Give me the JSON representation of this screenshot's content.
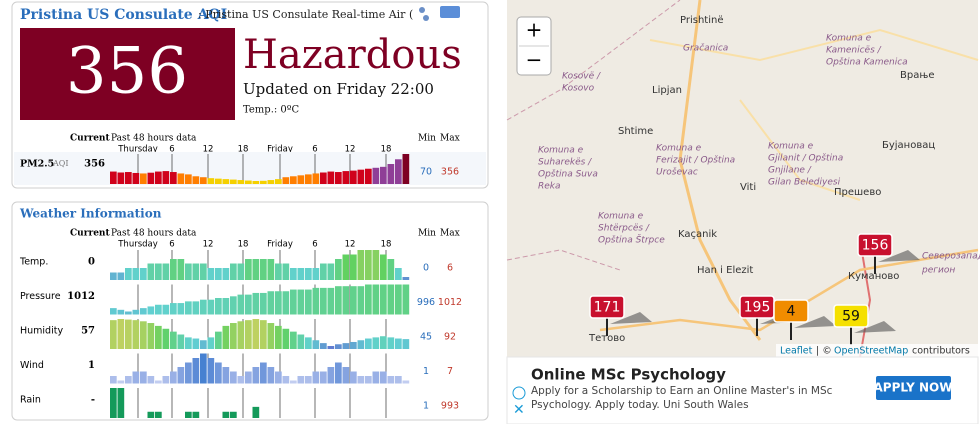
{
  "header": {
    "title": "Pristina US Consulate AQI",
    "subtitle": ": Pristina US Consulate Real-time Air ("
  },
  "aqi": {
    "value": 356,
    "level": "Hazardous",
    "updated": "Updated on Friday 22:00",
    "temp": "Temp.: 0ºC"
  },
  "columns": {
    "current": "Current",
    "past": "Past 48 hours data",
    "min": "Min",
    "max": "Max",
    "times": [
      "Thursday",
      "6",
      "12",
      "18",
      "Friday",
      "6",
      "12",
      "18"
    ]
  },
  "pm25": {
    "label": "PM2.5",
    "unit": "AQI",
    "current": 356,
    "min": 70,
    "max": 356,
    "values": [
      170,
      160,
      165,
      155,
      150,
      158,
      170,
      175,
      165,
      150,
      140,
      120,
      110,
      100,
      95,
      90,
      85,
      80,
      75,
      70,
      72,
      80,
      90,
      110,
      120,
      130,
      140,
      150,
      160,
      170,
      165,
      175,
      180,
      190,
      200,
      210,
      220,
      250,
      300,
      356
    ]
  },
  "weather": {
    "title": "Weather Information",
    "rows": [
      {
        "label": "Temp.",
        "current": 0,
        "min": 0,
        "max": 6,
        "values": [
          1,
          1,
          2,
          2,
          2,
          3,
          3,
          3,
          4,
          4,
          3,
          3,
          3,
          2,
          2,
          2,
          3,
          3,
          4,
          4,
          4,
          4,
          3,
          3,
          2,
          2,
          2,
          2,
          3,
          3,
          4,
          5,
          5,
          6,
          6,
          6,
          5,
          4,
          2,
          0
        ]
      },
      {
        "label": "Pressure",
        "current": 1012,
        "min": 996,
        "max": 1012,
        "values": [
          998,
          997,
          996,
          997,
          998,
          999,
          1000,
          1000,
          1001,
          1001,
          1002,
          1002,
          1003,
          1003,
          1004,
          1004,
          1005,
          1006,
          1006,
          1007,
          1007,
          1008,
          1008,
          1008,
          1009,
          1009,
          1009,
          1010,
          1010,
          1010,
          1011,
          1011,
          1011,
          1011,
          1012,
          1012,
          1012,
          1012,
          1012,
          1012
        ]
      },
      {
        "label": "Humidity",
        "current": 57,
        "min": 45,
        "max": 92,
        "values": [
          90,
          92,
          91,
          90,
          88,
          85,
          80,
          75,
          70,
          65,
          60,
          58,
          55,
          60,
          70,
          80,
          85,
          88,
          90,
          92,
          90,
          85,
          80,
          75,
          70,
          65,
          60,
          55,
          50,
          45,
          48,
          50,
          52,
          55,
          58,
          60,
          62,
          60,
          58,
          57
        ]
      },
      {
        "label": "Wind",
        "current": 1,
        "min": 1,
        "max": 7,
        "values": [
          2,
          1,
          2,
          3,
          3,
          2,
          1,
          2,
          3,
          4,
          5,
          6,
          7,
          6,
          5,
          4,
          3,
          2,
          3,
          4,
          5,
          4,
          3,
          2,
          1,
          2,
          2,
          3,
          3,
          4,
          5,
          4,
          3,
          2,
          2,
          3,
          3,
          2,
          2,
          1
        ]
      },
      {
        "label": "Rain",
        "current": "-",
        "min": 1,
        "max": 993,
        "values": [
          993,
          993,
          null,
          null,
          null,
          120,
          120,
          null,
          null,
          null,
          120,
          120,
          null,
          null,
          null,
          120,
          120,
          null,
          null,
          300,
          null,
          null,
          null,
          null,
          null,
          null,
          null,
          null,
          null,
          null,
          null,
          null,
          null,
          null,
          null,
          null,
          null,
          null,
          null,
          null
        ]
      }
    ]
  },
  "map": {
    "zoom_in": "+",
    "zoom_out": "−",
    "places": [
      "Prishtinë",
      "Kosovë /",
      "Kosovo",
      "Gračanica",
      "Komuna e",
      "Kamenicës /",
      "Opština Kamenica",
      "Lipjan",
      "Shtime",
      "Komuna e",
      "Gjilanit / Opština",
      "Gnjilane /",
      "Gilan Belediyesi",
      "Врање",
      "Бујановац",
      "Viti",
      "Прешево",
      "Komuna e",
      "Ferizajit / Opština",
      "Uroševac",
      "Komuna e",
      "Suharekës /",
      "Opština Suva",
      "Reka",
      "Komuna e",
      "Shtërpcës /",
      "Opština Štrpce",
      "Kaçanik",
      "Han i Elezit",
      "Куманово",
      "Тетово",
      "Северозапад",
      "регион"
    ],
    "markers": [
      {
        "value": 171,
        "color": "#c8102e"
      },
      {
        "value": 195,
        "color": "#c8102e"
      },
      {
        "value": 4,
        "color": "#f08c00"
      },
      {
        "value": 59,
        "color": "#f5e000"
      },
      {
        "value": 156,
        "color": "#c8102e"
      }
    ],
    "attribution": [
      "Leaflet",
      "| ©",
      "OpenStreetMap",
      "contributors"
    ]
  },
  "ad": {
    "title": "Online MSc Psychology",
    "text": [
      "Apply for a Scholarship to Earn an Online Master's in MSc",
      "Psychology. Apply today. Uni South Wales"
    ],
    "button": "APPLY NOW"
  }
}
